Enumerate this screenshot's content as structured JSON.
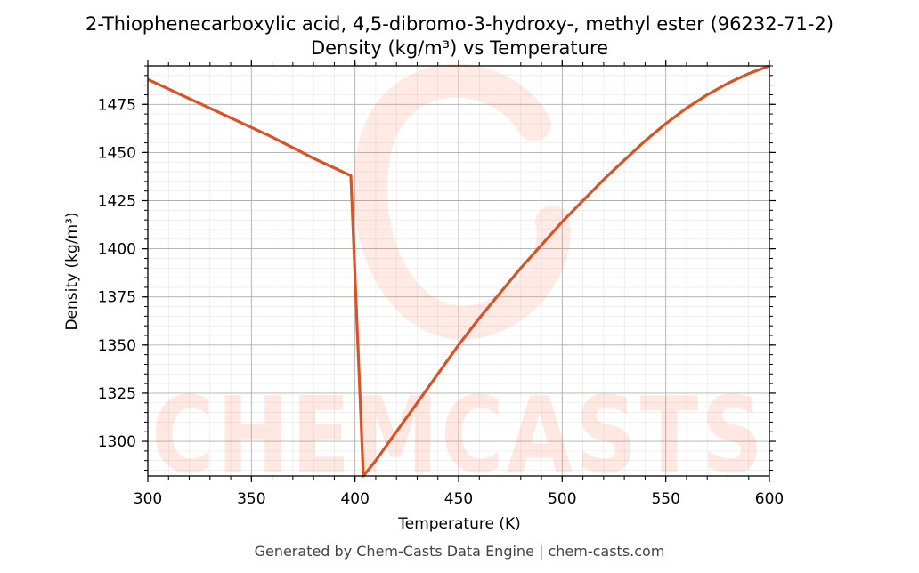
{
  "chart_data": {
    "type": "line",
    "title_line1": "2-Thiophenecarboxylic acid, 4,5-dibromo-3-hydroxy-, methyl ester (96232-71-2)",
    "title_line2": "Density (kg/m³) vs Temperature",
    "xlabel": "Temperature (K)",
    "ylabel": "Density (kg/m³)",
    "xlim": [
      300,
      600
    ],
    "ylim": [
      1282,
      1495
    ],
    "xticks": [
      300,
      350,
      400,
      450,
      500,
      550,
      600
    ],
    "yticks": [
      1300,
      1325,
      1350,
      1375,
      1400,
      1425,
      1450,
      1475
    ],
    "grid": true,
    "line_color": "#d95324",
    "series": [
      {
        "values": [
          [
            300,
            1488
          ],
          [
            320,
            1478
          ],
          [
            340,
            1468
          ],
          [
            360,
            1458
          ],
          [
            380,
            1447
          ],
          [
            398,
            1438
          ],
          [
            404,
            1282
          ],
          [
            410,
            1290
          ],
          [
            420,
            1305
          ],
          [
            430,
            1320
          ],
          [
            440,
            1335
          ],
          [
            450,
            1350
          ],
          [
            460,
            1364
          ],
          [
            470,
            1377
          ],
          [
            480,
            1390
          ],
          [
            490,
            1402
          ],
          [
            500,
            1414
          ],
          [
            510,
            1425
          ],
          [
            520,
            1436
          ],
          [
            530,
            1446
          ],
          [
            540,
            1456
          ],
          [
            550,
            1465
          ],
          [
            560,
            1473
          ],
          [
            570,
            1480
          ],
          [
            580,
            1486
          ],
          [
            590,
            1491
          ],
          [
            600,
            1495
          ]
        ]
      }
    ]
  },
  "watermark": {
    "text": "CHEMCASTS"
  },
  "footer": "Generated by Chem-Casts Data Engine | chem-casts.com"
}
